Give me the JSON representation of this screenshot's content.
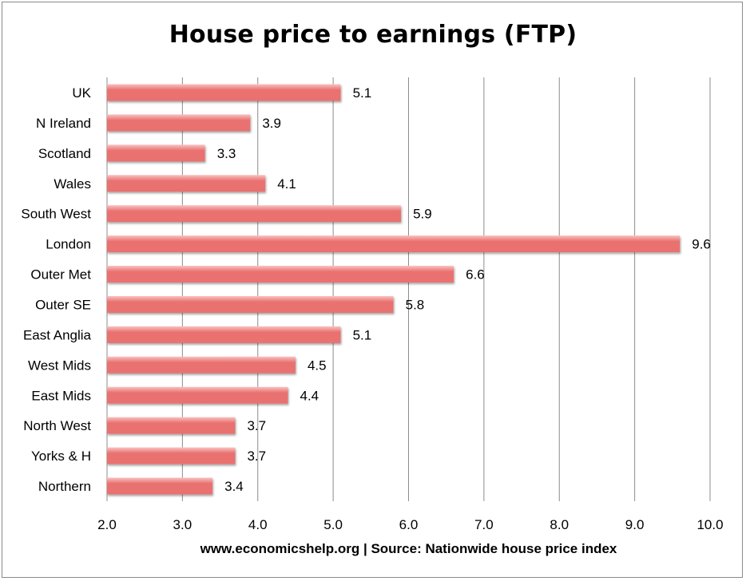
{
  "chart_data": {
    "type": "bar",
    "orientation": "horizontal",
    "title": "House price to earnings (FTP)",
    "source_note": "www.economicshelp.org | Source: Nationwide house price index",
    "categories": [
      "UK",
      "N Ireland",
      "Scotland",
      "Wales",
      "South West",
      "London",
      "Outer Met",
      "Outer SE",
      "East Anglia",
      "West Mids",
      "East Mids",
      "North West",
      "Yorks & H",
      "Northern"
    ],
    "values": [
      5.1,
      3.9,
      3.3,
      4.1,
      5.9,
      9.6,
      6.6,
      5.8,
      5.1,
      4.5,
      4.4,
      3.7,
      3.7,
      3.4
    ],
    "value_labels": [
      "5.1",
      "3.9",
      "3.3",
      "4.1",
      "5.9",
      "9.6",
      "6.6",
      "5.8",
      "5.1",
      "4.5",
      "4.4",
      "3.7",
      "3.7",
      "3.4"
    ],
    "xlim": [
      2.0,
      10.0
    ],
    "x_ticks": [
      "2.0",
      "3.0",
      "4.0",
      "5.0",
      "6.0",
      "7.0",
      "8.0",
      "9.0",
      "10.0"
    ],
    "grid": true,
    "bar_color": "#e9716f",
    "bar_highlight": "#f8c3c1"
  }
}
